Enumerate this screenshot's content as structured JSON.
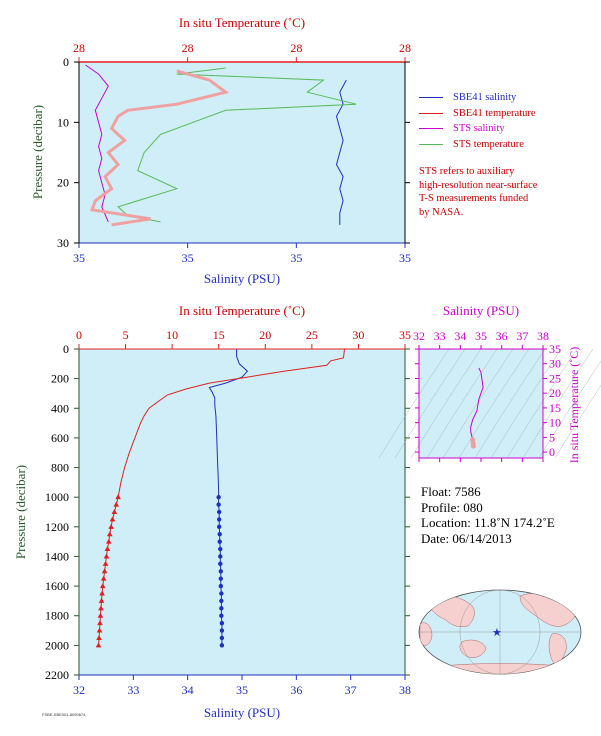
{
  "colors": {
    "plot_bg": "#cfeef7",
    "salinity": "#1f2fbf",
    "temperature": "#e02020",
    "sts_salinity": "#cc00cc",
    "sts_temperature": "#55bb55",
    "sts_temp_pink": "#f0a0a0",
    "ts_axis": "#cc00cc",
    "pressure_label": "#2a5a2a"
  },
  "top_chart": {
    "top_axis_title": "In situ Temperature (˚C)",
    "top_ticks": [
      "28",
      "28",
      "28",
      "28"
    ],
    "left_axis_title": "Pressure (decibar)",
    "left_ticks": [
      "0",
      "10",
      "20",
      "30"
    ],
    "bottom_axis_title": "Salinity (PSU)",
    "bottom_ticks": [
      "35",
      "35",
      "35",
      "35"
    ]
  },
  "legend": [
    {
      "label": "SBE41 salinity",
      "color": "#1f2fbf"
    },
    {
      "label": "SBE41 temperature",
      "color": "#e02020"
    },
    {
      "label": "STS salinity",
      "color": "#cc00cc"
    },
    {
      "label": "STS temperature",
      "color": "#55bb55"
    }
  ],
  "sts_note": [
    "STS refers to auxiliary",
    "high-resolution near-surface",
    "T-S measurements funded",
    "by NASA."
  ],
  "main_chart": {
    "top_axis_title": "In situ Temperature (˚C)",
    "top_ticks": [
      "0",
      "5",
      "10",
      "15",
      "20",
      "25",
      "30",
      "35"
    ],
    "left_axis_title": "Pressure (decibar)",
    "left_ticks": [
      "0",
      "200",
      "400",
      "600",
      "800",
      "1000",
      "1200",
      "1400",
      "1600",
      "1800",
      "2000",
      "2200"
    ],
    "bottom_axis_title": "Salinity (PSU)",
    "bottom_ticks": [
      "32",
      "33",
      "34",
      "35",
      "36",
      "37",
      "38"
    ]
  },
  "ts_chart": {
    "top_axis_title": "Salinity (PSU)",
    "top_ticks": [
      "32",
      "33",
      "34",
      "35",
      "36",
      "37",
      "38"
    ],
    "right_axis_title": "In situ Temperature (˚C)",
    "right_ticks": [
      "0",
      "5",
      "10",
      "15",
      "20",
      "25",
      "30",
      "35"
    ]
  },
  "float_info": {
    "float": "Float:  7586",
    "profile": "Profile:  080",
    "location": "Location:  11.8˚N  174.2˚E",
    "date": "Date:  06/14/2013"
  },
  "credit": "FSBE-SBE001-8090674",
  "chart_data": [
    {
      "type": "line",
      "name": "near-surface",
      "ylim": [
        30,
        0
      ],
      "series": [
        {
          "name": "SBE41 salinity",
          "x": [
            0.82,
            0.8,
            0.81,
            0.79,
            0.8,
            0.81,
            0.8,
            0.79,
            0.81,
            0.8,
            0.81,
            0.8,
            0.8
          ],
          "y": [
            3,
            5,
            7,
            9,
            11,
            13,
            15,
            17,
            19,
            21,
            23,
            25,
            27
          ]
        },
        {
          "name": "STS salinity",
          "x": [
            0.02,
            0.06,
            0.09,
            0.07,
            0.05,
            0.06,
            0.07,
            0.06,
            0.07,
            0.06,
            0.07,
            0.08,
            0.07,
            0.09
          ],
          "y": [
            0.5,
            2,
            4,
            6,
            8,
            10,
            12,
            14,
            16,
            18,
            20,
            22,
            24,
            26.5
          ]
        },
        {
          "name": "STS temperature",
          "x": [
            0.45,
            0.3,
            0.75,
            0.7,
            0.85,
            0.45,
            0.35,
            0.25,
            0.2,
            0.18,
            0.3,
            0.12,
            0.15,
            0.25
          ],
          "y": [
            1,
            2,
            3,
            5,
            7,
            8,
            10,
            12,
            15,
            18,
            21,
            24,
            25.5,
            26.5
          ]
        },
        {
          "name": "SBE41 temperature",
          "x": [
            0.3,
            0.4,
            0.45,
            0.3,
            0.15,
            0.12,
            0.1,
            0.14,
            0.09,
            0.12,
            0.08,
            0.1,
            0.05,
            0.04,
            0.22,
            0.1
          ],
          "y": [
            1.5,
            3,
            5,
            7,
            8,
            9,
            11,
            13,
            15,
            17,
            19,
            21,
            23,
            24.5,
            26,
            27
          ]
        }
      ]
    },
    {
      "type": "line",
      "name": "full-profile",
      "ylabel": "Pressure (decibar)",
      "ylim": [
        2200,
        0
      ],
      "series": [
        {
          "name": "Salinity",
          "axis": "salinity",
          "xlim": [
            32,
            38
          ],
          "pressure": [
            0,
            50,
            100,
            150,
            190,
            230,
            260,
            290,
            330,
            380,
            450,
            550,
            650,
            750,
            850,
            950,
            1000,
            1050,
            1100,
            1150,
            1200,
            1250,
            1300,
            1350,
            1400,
            1450,
            1500,
            1550,
            1600,
            1650,
            1700,
            1750,
            1800,
            1850,
            1900,
            1950,
            2000
          ],
          "values": [
            34.9,
            34.9,
            34.95,
            35.1,
            35.0,
            34.7,
            34.4,
            34.45,
            34.5,
            34.5,
            34.52,
            34.53,
            34.54,
            34.55,
            34.56,
            34.57,
            34.57,
            34.57,
            34.58,
            34.58,
            34.58,
            34.59,
            34.59,
            34.6,
            34.6,
            34.6,
            34.61,
            34.61,
            34.61,
            34.62,
            34.62,
            34.62,
            34.62,
            34.63,
            34.63,
            34.63,
            34.63
          ]
        },
        {
          "name": "Temperature",
          "axis": "temperature",
          "xlim": [
            0,
            35
          ],
          "pressure": [
            0,
            60,
            80,
            110,
            150,
            190,
            230,
            270,
            310,
            350,
            400,
            450,
            500,
            600,
            700,
            800,
            900,
            1000,
            1050,
            1100,
            1150,
            1200,
            1250,
            1300,
            1350,
            1400,
            1450,
            1500,
            1550,
            1600,
            1650,
            1700,
            1750,
            1800,
            1850,
            1900,
            1950,
            2000
          ],
          "values": [
            28.5,
            28.4,
            27.0,
            26.6,
            22.0,
            18.0,
            14.0,
            11.5,
            9.5,
            8.6,
            7.5,
            7.0,
            6.6,
            6.0,
            5.4,
            4.9,
            4.5,
            4.2,
            4.0,
            3.8,
            3.6,
            3.45,
            3.3,
            3.2,
            3.05,
            2.95,
            2.85,
            2.75,
            2.65,
            2.55,
            2.48,
            2.42,
            2.36,
            2.3,
            2.25,
            2.2,
            2.15,
            2.1
          ]
        }
      ]
    },
    {
      "type": "line",
      "name": "t-s-diagram",
      "xlabel": "Salinity (PSU)",
      "ylabel": "In situ Temperature (˚C)",
      "xlim": [
        32,
        38
      ],
      "ylim": [
        -2,
        35
      ],
      "series": [
        {
          "name": "T-S",
          "x": [
            34.9,
            35.0,
            35.1,
            34.9,
            34.8,
            34.6,
            34.5,
            34.5,
            34.55,
            34.6,
            34.62,
            34.63
          ],
          "y": [
            28.5,
            27.0,
            22.0,
            18.0,
            14.0,
            11.0,
            8.5,
            7.0,
            5.5,
            4.2,
            3.0,
            2.1
          ]
        }
      ]
    }
  ]
}
